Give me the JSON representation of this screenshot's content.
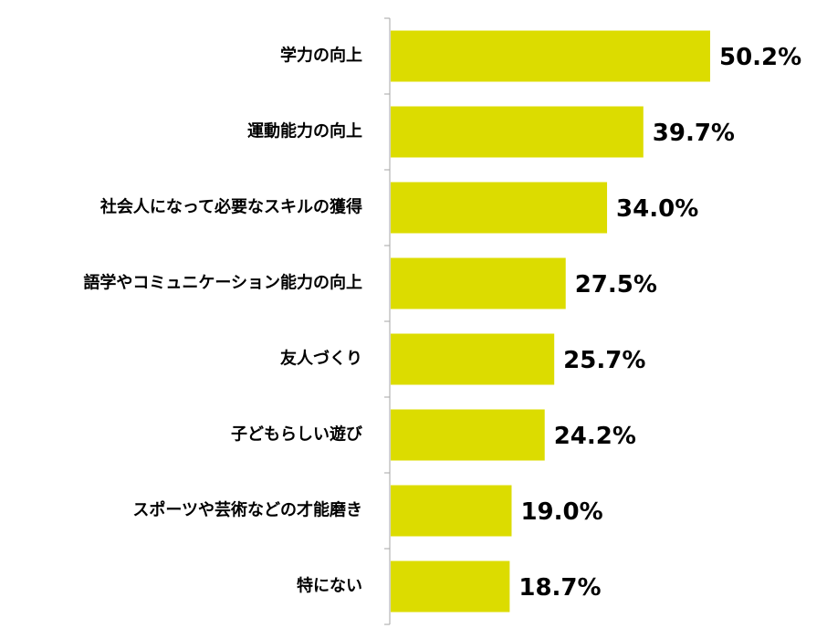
{
  "chart_data": {
    "type": "bar",
    "orientation": "horizontal",
    "categories": [
      "学力の向上",
      "運動能力の向上",
      "社会人になって必要なスキルの獲得",
      "語学やコミュニケーション能力の向上",
      "友人づくり",
      "子どもらしい遊び",
      "スポーツや芸術などの才能磨き",
      "特にない"
    ],
    "values": [
      50.2,
      39.7,
      34.0,
      27.5,
      25.7,
      24.2,
      19.0,
      18.7
    ],
    "value_labels": [
      "50.2%",
      "39.7%",
      "34.0%",
      "27.5%",
      "25.7%",
      "24.2%",
      "19.0%",
      "18.7%"
    ],
    "title": "",
    "xlabel": "",
    "ylabel": "",
    "xlim": [
      0,
      50.2
    ],
    "grid": false,
    "legend": "none",
    "bar_color": "#dcdc00",
    "axis_color": "#a6a6a6"
  }
}
